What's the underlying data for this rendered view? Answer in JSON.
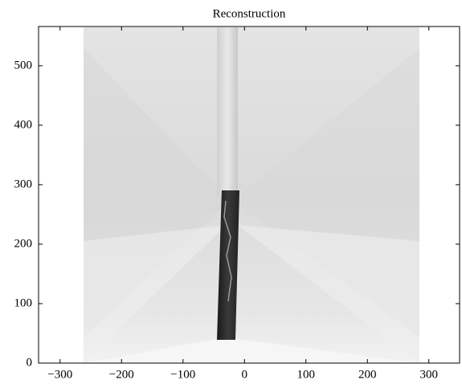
{
  "chart_data": {
    "type": "image",
    "title": "Reconstruction",
    "xlim": [
      -335,
      350
    ],
    "ylim": [
      0,
      566
    ],
    "xticks": [
      {
        "value": -300,
        "label": "−300"
      },
      {
        "value": -200,
        "label": "−200"
      },
      {
        "value": -100,
        "label": "−100"
      },
      0,
      100,
      200,
      300
    ],
    "yticks": [
      0,
      100,
      200,
      300,
      400,
      500
    ]
  }
}
